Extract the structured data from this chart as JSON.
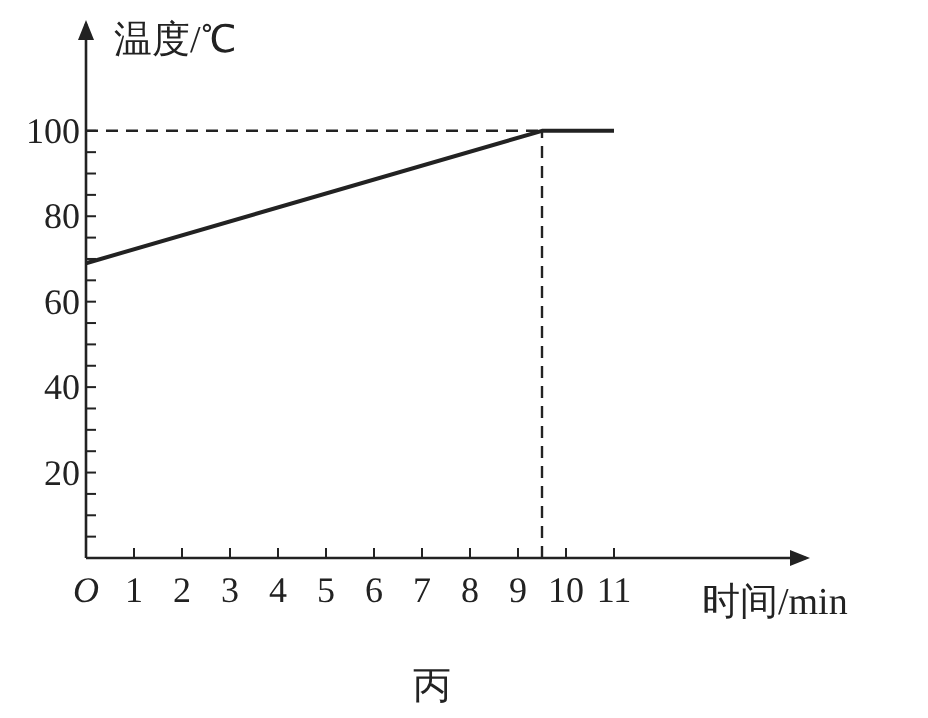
{
  "chart_data": {
    "type": "line",
    "ylabel": "温度/℃",
    "xlabel": "时间/min",
    "annotations": [
      "丙"
    ],
    "x": [
      0,
      9.5,
      11
    ],
    "series": [
      {
        "color": "#222222",
        "values": [
          69,
          100,
          100
        ]
      }
    ],
    "xlim": [
      0,
      15
    ],
    "ylim": [
      0,
      125
    ],
    "xticks": [
      {
        "value": 0,
        "label": "O"
      },
      1,
      2,
      3,
      4,
      5,
      6,
      7,
      8,
      9,
      10,
      11
    ],
    "yticks": [
      {
        "value": 5,
        "label": null
      },
      {
        "value": 10,
        "label": null
      },
      {
        "value": 15,
        "label": null
      },
      20,
      {
        "value": 25,
        "label": null
      },
      {
        "value": 30,
        "label": null
      },
      {
        "value": 35,
        "label": null
      },
      40,
      {
        "value": 45,
        "label": null
      },
      {
        "value": 50,
        "label": null
      },
      {
        "value": 55,
        "label": null
      },
      60,
      {
        "value": 65,
        "label": null
      },
      {
        "value": 70,
        "label": null
      },
      {
        "value": 75,
        "label": null
      },
      80,
      {
        "value": 85,
        "label": null
      },
      {
        "value": 90,
        "label": null
      },
      {
        "value": 95,
        "label": null
      },
      100
    ],
    "ref_lines": [
      {
        "axis": "y",
        "value": 100,
        "line_style": "dashed",
        "color": "#222222"
      },
      {
        "axis": "x",
        "value": 9.5,
        "line_style": "dashed",
        "color": "#222222"
      }
    ],
    "grid": false,
    "marker": "none",
    "line_style": "solid"
  }
}
